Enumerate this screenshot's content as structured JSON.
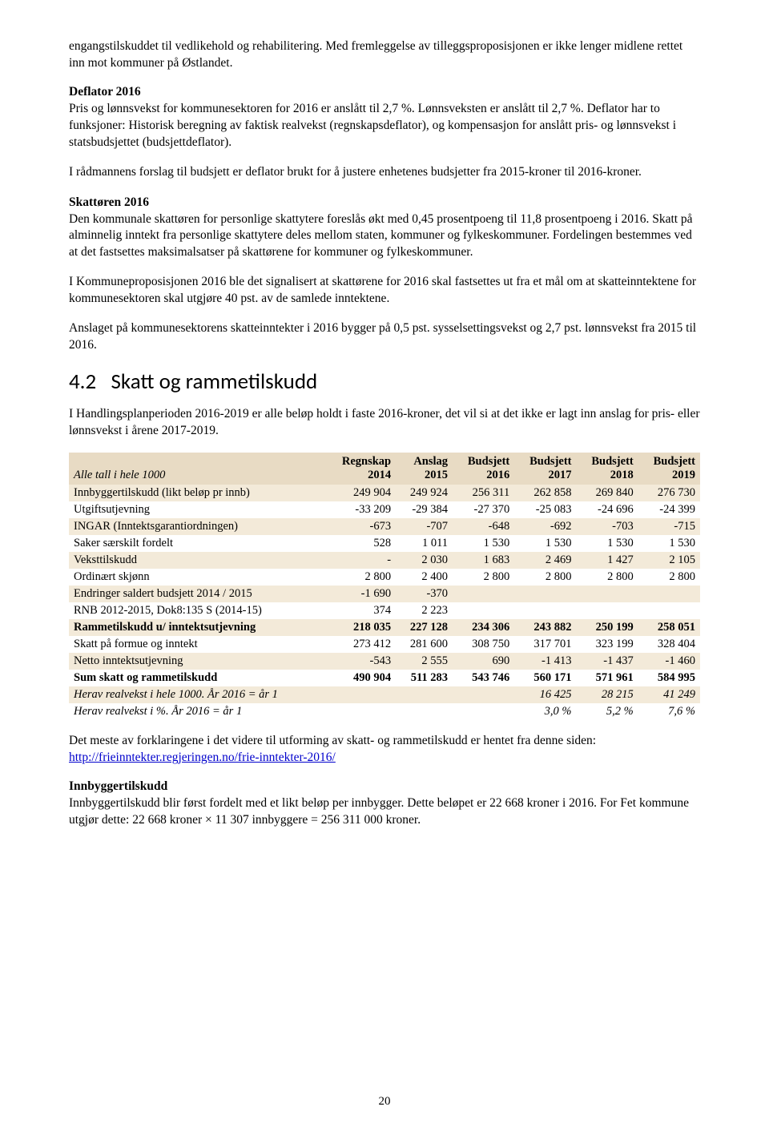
{
  "intro_paragraph": "engangstilskuddet til vedlikehold og rehabilitering. Med fremleggelse av tilleggsproposisjonen er ikke lenger midlene rettet inn mot kommuner på Østlandet.",
  "deflator": {
    "heading": "Deflator 2016",
    "p1": "Pris og lønnsvekst for kommunesektoren for 2016 er anslått til 2,7 %. Lønnsveksten er anslått til 2,7 %. Deflator har to funksjoner: Historisk beregning av faktisk realvekst (regnskapsdeflator), og kompensasjon for anslått pris- og lønnsvekst i statsbudsjettet (budsjettdeflator).",
    "p2": "I rådmannens forslag til budsjett er deflator brukt for å justere enhetenes budsjetter fra 2015-kroner til 2016-kroner."
  },
  "skattoren": {
    "heading": "Skattøren 2016",
    "p1": "Den kommunale skattøren for personlige skattytere foreslås økt med 0,45 prosentpoeng til 11,8 prosentpoeng i 2016. Skatt på alminnelig inntekt fra personlige skattytere deles mellom staten, kommuner og fylkeskommuner. Fordelingen bestemmes ved at det fastsettes maksimalsatser på skattørene for kommuner og fylkeskommuner.",
    "p2": "I Kommuneproposisjonen 2016 ble det signalisert at skattørene for 2016 skal fastsettes ut fra et mål om at skatteinntektene for kommunesektoren skal utgjøre 40 pst. av de samlede inntektene.",
    "p3": "Anslaget på kommunesektorens skatteinntekter i 2016 bygger på 0,5 pst. sysselsettingsvekst og 2,7 pst. lønnsvekst fra 2015 til 2016."
  },
  "section_4_2": {
    "number": "4.2",
    "title": "Skatt og rammetilskudd",
    "p1": "I Handlingsplanperioden 2016-2019 er alle beløp holdt i faste 2016-kroner, det vil si at det ikke er lagt inn anslag for pris- eller lønnsvekst i årene 2017-2019."
  },
  "table": {
    "header_label": "Alle tall i hele 1000",
    "columns": [
      {
        "l1": "Regnskap",
        "l2": "2014"
      },
      {
        "l1": "Anslag",
        "l2": "2015"
      },
      {
        "l1": "Budsjett",
        "l2": "2016"
      },
      {
        "l1": "Budsjett",
        "l2": "2017"
      },
      {
        "l1": "Budsjett",
        "l2": "2018"
      },
      {
        "l1": "Budsjett",
        "l2": "2019"
      }
    ],
    "rows": [
      {
        "label": "Innbyggertilskudd (likt beløp pr innb)",
        "vals": [
          "249 904",
          "249 924",
          "256 311",
          "262 858",
          "269 840",
          "276 730"
        ],
        "alt": true
      },
      {
        "label": "Utgiftsutjevning",
        "vals": [
          "-33 209",
          "-29 384",
          "-27 370",
          "-25 083",
          "-24 696",
          "-24 399"
        ],
        "alt": false
      },
      {
        "label": "INGAR (Inntektsgarantiordningen)",
        "vals": [
          "-673",
          "-707",
          "-648",
          "-692",
          "-703",
          "-715"
        ],
        "alt": true
      },
      {
        "label": "Saker særskilt fordelt",
        "vals": [
          "528",
          "1 011",
          "1 530",
          "1 530",
          "1 530",
          "1 530"
        ],
        "alt": false
      },
      {
        "label": "Veksttilskudd",
        "vals": [
          "-",
          "2 030",
          "1 683",
          "2 469",
          "1 427",
          "2 105"
        ],
        "alt": true
      },
      {
        "label": "Ordinært skjønn",
        "vals": [
          "2 800",
          "2 400",
          "2 800",
          "2 800",
          "2 800",
          "2 800"
        ],
        "alt": false
      },
      {
        "label": "Endringer saldert budsjett 2014 / 2015",
        "vals": [
          "-1 690",
          "-370",
          "",
          "",
          "",
          ""
        ],
        "alt": true
      },
      {
        "label": "RNB 2012-2015, Dok8:135 S (2014-15)",
        "vals": [
          "374",
          "2 223",
          "",
          "",
          "",
          ""
        ],
        "alt": false
      },
      {
        "label": "Rammetilskudd u/ inntektsutjevning",
        "vals": [
          "218 035",
          "227 128",
          "234 306",
          "243 882",
          "250 199",
          "258 051"
        ],
        "alt": true,
        "bold": true
      },
      {
        "label": "Skatt på formue og inntekt",
        "vals": [
          "273 412",
          "281 600",
          "308 750",
          "317 701",
          "323 199",
          "328 404"
        ],
        "alt": false
      },
      {
        "label": "Netto inntektsutjevning",
        "vals": [
          "-543",
          "2 555",
          "690",
          "-1 413",
          "-1 437",
          "-1 460"
        ],
        "alt": true
      },
      {
        "label": "Sum skatt og rammetilskudd",
        "vals": [
          "490 904",
          "511 283",
          "543 746",
          "560 171",
          "571 961",
          "584 995"
        ],
        "alt": false,
        "bold": true
      },
      {
        "label": "Herav realvekst i hele 1000. År 2016 = år 1",
        "vals": [
          "",
          "",
          "",
          "16 425",
          "28 215",
          "41 249"
        ],
        "alt": true,
        "italic": true
      },
      {
        "label": "Herav realvekst i %. År 2016 = år 1",
        "vals": [
          "",
          "",
          "",
          "3,0 %",
          "5,2 %",
          "7,6 %"
        ],
        "alt": false,
        "italic": true
      }
    ]
  },
  "after_table": {
    "p1_pre": "Det meste av forklaringene i det videre til utforming av skatt- og rammetilskudd er hentet fra denne siden: ",
    "link_text": "http://frieinntekter.regjeringen.no/frie-inntekter-2016/"
  },
  "innbygger": {
    "heading": "Innbyggertilskudd",
    "p1": "Innbyggertilskudd blir først fordelt med et likt beløp per innbygger. Dette beløpet er 22 668 kroner i 2016. For Fet kommune utgjør dette: 22 668 kroner × 11 307 innbyggere = 256 311 000 kroner."
  },
  "page_number": "20",
  "colors": {
    "header_bg": "#e8dbc4",
    "alt_row_bg": "#f3ead9",
    "text": "#000000",
    "link": "#0000cc"
  }
}
